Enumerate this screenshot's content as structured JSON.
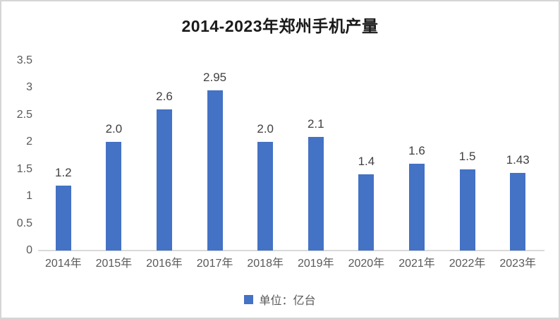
{
  "chart_data": {
    "type": "bar",
    "title": "2014-2023年郑州手机产量",
    "categories": [
      "2014年",
      "2015年",
      "2016年",
      "2017年",
      "2018年",
      "2019年",
      "2020年",
      "2021年",
      "2022年",
      "2023年"
    ],
    "values": [
      1.2,
      2.0,
      2.6,
      2.95,
      2.0,
      2.1,
      1.4,
      1.6,
      1.5,
      1.43
    ],
    "value_labels": [
      "1.2",
      "2.0",
      "2.6",
      "2.95",
      "2.0",
      "2.1",
      "1.4",
      "1.6",
      "1.5",
      "1.43"
    ],
    "ylim": [
      0,
      3.5
    ],
    "ytick_labels": [
      "0",
      "0.5",
      "1",
      "1.5",
      "2",
      "2.5",
      "3",
      "3.5"
    ],
    "grid": false,
    "legend_position": "bottom",
    "legend": {
      "label": "单位：亿台"
    },
    "colors": {
      "bar": "#4472c4",
      "axis_line": "#d9d9d9",
      "axis_text": "#595959",
      "data_label": "#404040",
      "title": "#1a1a1a",
      "frame_border": "#d5d5d5"
    }
  }
}
